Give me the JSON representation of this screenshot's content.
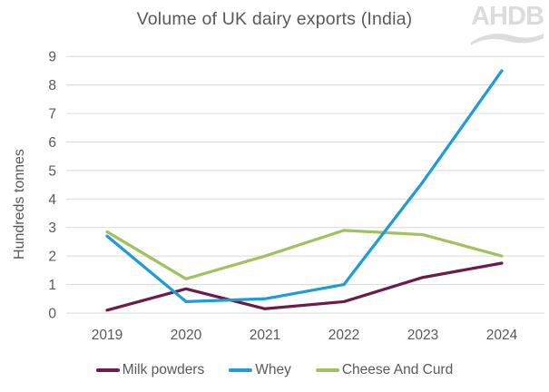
{
  "title": "Volume of UK dairy exports (India)",
  "logo": {
    "text": "AHDB"
  },
  "chart_data": {
    "type": "line",
    "title": "Volume of UK dairy exports (India)",
    "xlabel": "",
    "ylabel": "Hundreds tonnes",
    "categories": [
      "2019",
      "2020",
      "2021",
      "2022",
      "2023",
      "2024"
    ],
    "series": [
      {
        "name": "Milk powders",
        "color": "#6B1C4A",
        "values": [
          0.1,
          0.85,
          0.15,
          0.4,
          1.25,
          1.75
        ]
      },
      {
        "name": "Whey",
        "color": "#1E9CD8",
        "values": [
          2.7,
          0.4,
          0.5,
          1.0,
          4.6,
          8.5
        ]
      },
      {
        "name": "Cheese And Curd",
        "color": "#A3C25F",
        "values": [
          2.85,
          1.2,
          2.0,
          2.9,
          2.75,
          2.0
        ]
      }
    ],
    "ylim": [
      0,
      9
    ],
    "y_ticks": [
      0,
      1,
      2,
      3,
      4,
      5,
      6,
      7,
      8,
      9
    ],
    "grid": "horizontal",
    "legend_position": "bottom"
  },
  "colors": {
    "text": "#595959",
    "gridline": "#D9D9D9",
    "logo": "#DCDCDC",
    "background": "#FFFFFF"
  }
}
